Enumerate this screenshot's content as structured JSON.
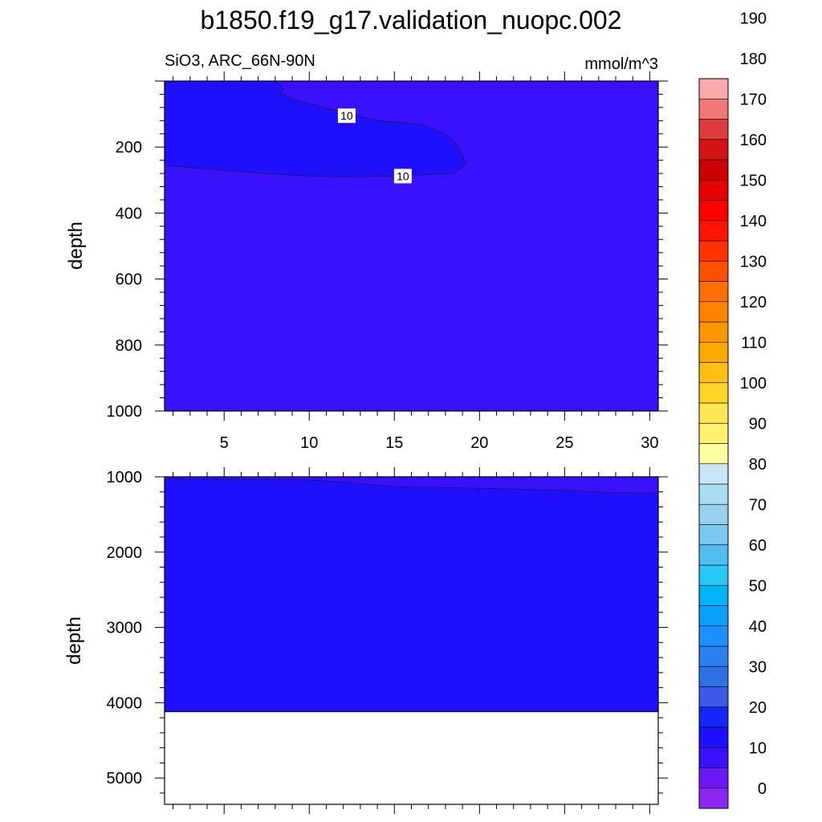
{
  "chart_data": {
    "type": "heatmap",
    "title": "b1850.f19_g17.validation_nuopc.002",
    "subtitle_left": "SiO3, ARC_66N-90N",
    "subtitle_right": "mmol/m^3",
    "panels": [
      {
        "id": "upper",
        "ylabel": "depth",
        "ylim": [
          1000,
          0
        ],
        "yticks": [
          200,
          400,
          600,
          800,
          1000
        ],
        "xlim": [
          1.5,
          30.5
        ],
        "xticks": [
          5,
          10,
          15,
          20,
          25,
          30
        ],
        "base_fill": "#3a10ff",
        "regions": [
          {
            "fill": "#1e10ff",
            "label": "10",
            "polygon": [
              [
                1.5,
                0
              ],
              [
                8.0,
                0
              ],
              [
                8.5,
                25
              ],
              [
                8.3,
                35
              ],
              [
                9.0,
                55
              ],
              [
                12.0,
                95
              ],
              [
                14.0,
                120
              ],
              [
                16.5,
                130
              ],
              [
                18.0,
                160
              ],
              [
                18.7,
                195
              ],
              [
                19.2,
                250
              ],
              [
                18.5,
                280
              ],
              [
                15.0,
                288
              ],
              [
                12.0,
                290
              ],
              [
                10.0,
                288
              ],
              [
                6.0,
                275
              ],
              [
                3.0,
                262
              ],
              [
                1.5,
                255
              ]
            ]
          }
        ],
        "contour_labels": [
          {
            "text": "10",
            "x": 12.2,
            "y": 105
          },
          {
            "text": "10",
            "x": 15.5,
            "y": 288
          }
        ]
      },
      {
        "id": "lower",
        "ylabel": "depth",
        "ylim": [
          5350,
          1000
        ],
        "yticks": [
          1000,
          2000,
          3000,
          4000,
          5000
        ],
        "xlim": [
          1.5,
          30.5
        ],
        "xticks": [
          5,
          10,
          15,
          20,
          25,
          30
        ],
        "base_fill": "#1e10ff",
        "data_bottom": 4120,
        "regions": [
          {
            "fill": "#3a10ff",
            "polygon": [
              [
                1.5,
                1000
              ],
              [
                30.5,
                1000
              ],
              [
                30.5,
                1215
              ],
              [
                28.0,
                1210
              ],
              [
                25.0,
                1180
              ],
              [
                20.0,
                1150
              ],
              [
                15.0,
                1130
              ],
              [
                12.0,
                1070
              ],
              [
                10.0,
                1040
              ],
              [
                5.0,
                1030
              ],
              [
                1.5,
                1025
              ]
            ]
          }
        ]
      }
    ],
    "colorbar": {
      "labels": [
        "0",
        "10",
        "20",
        "30",
        "40",
        "50",
        "60",
        "70",
        "80",
        "90",
        "100",
        "110",
        "120",
        "130",
        "140",
        "150",
        "160",
        "170",
        "180",
        "190"
      ],
      "colors": [
        "#8a28f0",
        "#6a18f5",
        "#3a10ff",
        "#1e10ff",
        "#1428f5",
        "#3a58e6",
        "#3070e6",
        "#2a80ee",
        "#1e90ff",
        "#0aa0ff",
        "#00b4f5",
        "#28c8f5",
        "#50bef0",
        "#78c8f0",
        "#96d2f0",
        "#a8dcf0",
        "#c8e6f5",
        "#ffffa0",
        "#fff070",
        "#ffe650",
        "#ffd228",
        "#ffbe14",
        "#ffaa00",
        "#ff9600",
        "#ff8200",
        "#ff6e00",
        "#ff5000",
        "#ff3200",
        "#ff1400",
        "#ff0000",
        "#e60000",
        "#cd0000",
        "#d21414",
        "#dc3c3c",
        "#f07878",
        "#faaaaa"
      ]
    }
  }
}
